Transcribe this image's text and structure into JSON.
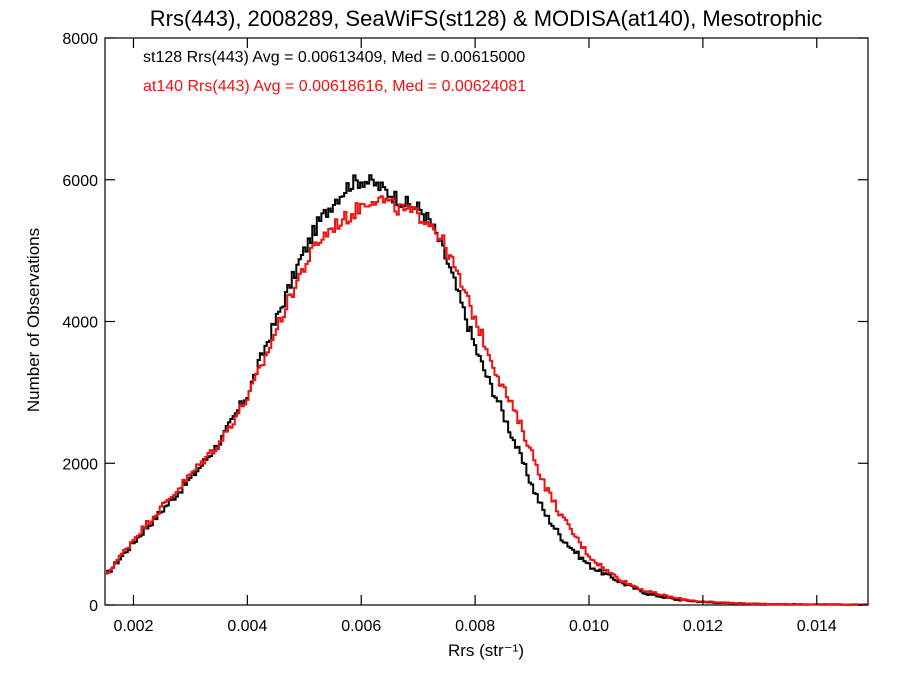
{
  "chart_data": {
    "type": "line",
    "title": "Rrs(443), 2008289, SeaWiFS(st128) & MODISA(at140), Mesotrophic",
    "xlabel": "Rrs (str⁻¹)",
    "ylabel": "Number of Observations",
    "xlim": [
      0.0015,
      0.0149
    ],
    "ylim": [
      0,
      8000
    ],
    "x_ticks": [
      0.002,
      0.004,
      0.006,
      0.008,
      0.01,
      0.012,
      0.014
    ],
    "x_tick_labels": [
      "0.002",
      "0.004",
      "0.006",
      "0.008",
      "0.010",
      "0.012",
      "0.014"
    ],
    "y_ticks": [
      0,
      2000,
      4000,
      6000,
      8000
    ],
    "y_tick_labels": [
      "0",
      "2000",
      "4000",
      "6000",
      "8000"
    ],
    "grid": false,
    "step": true,
    "annotations": [
      {
        "text": "st128 Rrs(443) Avg = 0.00613409, Med = 0.00615000",
        "color": "#000000"
      },
      {
        "text": "at140 Rrs(443) Avg = 0.00618616, Med = 0.00624081",
        "color": "#ee1111"
      }
    ],
    "series": [
      {
        "color": "#000000",
        "x": [
          0.0015,
          0.002,
          0.0025,
          0.003,
          0.0035,
          0.004,
          0.0043,
          0.0046,
          0.0049,
          0.0052,
          0.0055,
          0.0058,
          0.006,
          0.0062,
          0.0064,
          0.0066,
          0.0068,
          0.007,
          0.0072,
          0.0074,
          0.0076,
          0.0078,
          0.008,
          0.0082,
          0.0084,
          0.0086,
          0.0088,
          0.009,
          0.0092,
          0.0095,
          0.0098,
          0.01,
          0.0103,
          0.0106,
          0.011,
          0.0115,
          0.012,
          0.0125,
          0.013,
          0.0135,
          0.014,
          0.0149
        ],
        "y": [
          420,
          900,
          1350,
          1800,
          2300,
          3000,
          3650,
          4250,
          4850,
          5350,
          5700,
          5950,
          6000,
          5950,
          5850,
          5750,
          5650,
          5600,
          5400,
          5050,
          4600,
          4100,
          3600,
          3200,
          2850,
          2450,
          2050,
          1650,
          1300,
          950,
          700,
          550,
          420,
          300,
          160,
          80,
          40,
          25,
          15,
          10,
          8,
          5
        ]
      },
      {
        "color": "#ee1111",
        "x": [
          0.0015,
          0.002,
          0.0025,
          0.003,
          0.0035,
          0.004,
          0.0043,
          0.0046,
          0.0049,
          0.0052,
          0.0055,
          0.0058,
          0.006,
          0.0062,
          0.0064,
          0.0066,
          0.0068,
          0.007,
          0.0072,
          0.0074,
          0.0076,
          0.0078,
          0.008,
          0.0082,
          0.0084,
          0.0086,
          0.0088,
          0.009,
          0.0092,
          0.0095,
          0.0098,
          0.01,
          0.0103,
          0.0106,
          0.011,
          0.0115,
          0.012,
          0.0125,
          0.013,
          0.0135,
          0.014,
          0.0149
        ],
        "y": [
          420,
          950,
          1400,
          1850,
          2300,
          2950,
          3500,
          4100,
          4650,
          5100,
          5350,
          5500,
          5650,
          5750,
          5700,
          5600,
          5550,
          5500,
          5400,
          5150,
          4800,
          4400,
          4000,
          3600,
          3200,
          2850,
          2500,
          2100,
          1700,
          1250,
          900,
          680,
          480,
          330,
          190,
          95,
          45,
          25,
          15,
          10,
          8,
          5
        ]
      }
    ]
  }
}
